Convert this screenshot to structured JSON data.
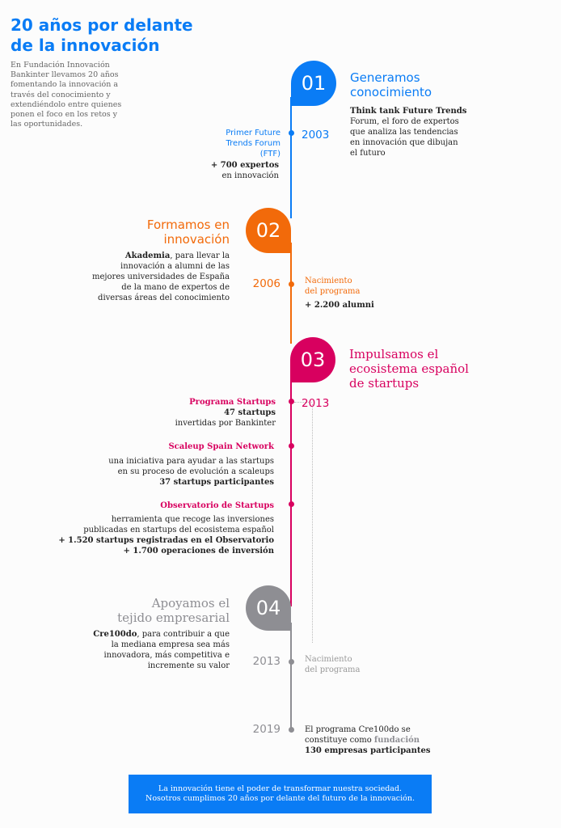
{
  "colors": {
    "blue": "#0a7cf5",
    "orange": "#f26a0a",
    "magenta": "#d8005f",
    "gray": "#8e8e93"
  },
  "header": {
    "title_line1": "20 años por delante",
    "title_line2": "de la innovación",
    "intro": [
      "En Fundación Innovación",
      "Bankinter llevamos 20 años",
      "fomentando la innovación a",
      "través del conocimiento y",
      "extendiéndolo entre quienes",
      "ponen el foco en los retos y",
      "las oportunidades."
    ]
  },
  "s1": {
    "num": "01",
    "title": [
      "Generamos",
      "conocimiento"
    ],
    "desc_bold": "Think tank Future Trends",
    "desc": [
      "Forum, el foro de expertos",
      "que analiza las tendencias",
      "en innovación que dibujan",
      "el futuro"
    ],
    "year": "2003",
    "event": [
      "Primer Future",
      "Trends Forum",
      "(FTF)"
    ],
    "stat_bold": "+ 700 expertos",
    "stat": "en innovación"
  },
  "s2": {
    "num": "02",
    "title": [
      "Formamos en",
      "innovación"
    ],
    "desc_bold": "Akademia",
    "desc_first": ", para llevar la",
    "desc": [
      "innovación a alumni de las",
      "mejores universidades de España",
      "de la mano de expertos de",
      "diversas áreas del conocimiento"
    ],
    "year": "2006",
    "event": [
      "Nacimiento",
      "del programa"
    ],
    "stat_bold": "+ 2.200 alumni"
  },
  "s3": {
    "num": "03",
    "title": [
      "Impulsamos el",
      "ecosistema español",
      "de startups"
    ],
    "year": "2013",
    "items": [
      {
        "title": "Programa Startups",
        "lines": [
          {
            "text": "47 startups",
            "bold": true
          },
          {
            "text": "invertidas por Bankinter",
            "bold": false
          }
        ]
      },
      {
        "title": "Scaleup Spain Network",
        "lines": [
          {
            "text": "una iniciativa para ayudar a las startups",
            "bold": false
          },
          {
            "text": "en su proceso de evolución a scaleups",
            "bold": false
          },
          {
            "text": "37 startups participantes",
            "bold": true
          }
        ]
      },
      {
        "title": "Observatorio de Startups",
        "lines": [
          {
            "text": "herramienta que recoge las inversiones",
            "bold": false
          },
          {
            "text": "publicadas en startups del ecosistema español",
            "bold": false
          },
          {
            "text": "+ 1.520 startups registradas en el Observatorio",
            "bold": true
          },
          {
            "text": "+ 1.700 operaciones de inversión",
            "bold": true
          }
        ]
      }
    ]
  },
  "s4": {
    "num": "04",
    "title": [
      "Apoyamos el",
      "tejido empresarial"
    ],
    "desc_bold": "Cre100do",
    "desc_first": ", para contribuir a que",
    "desc": [
      "la mediana empresa sea más",
      "innovadora, más competitiva e",
      "incremente su valor"
    ],
    "year1": "2013",
    "event1": [
      "Nacimiento",
      "del programa"
    ],
    "year2": "2019",
    "event2_line1": "El programa Cre100do se",
    "event2_line2_pre": "constituye como ",
    "event2_line2_em": "fundación",
    "event2_stat": "130 empresas participantes"
  },
  "footer": {
    "line1": "La innovación tiene el poder de transformar nuestra sociedad.",
    "line2": "Nosotros cumplimos 20 años por delante del futuro de la innovación."
  }
}
